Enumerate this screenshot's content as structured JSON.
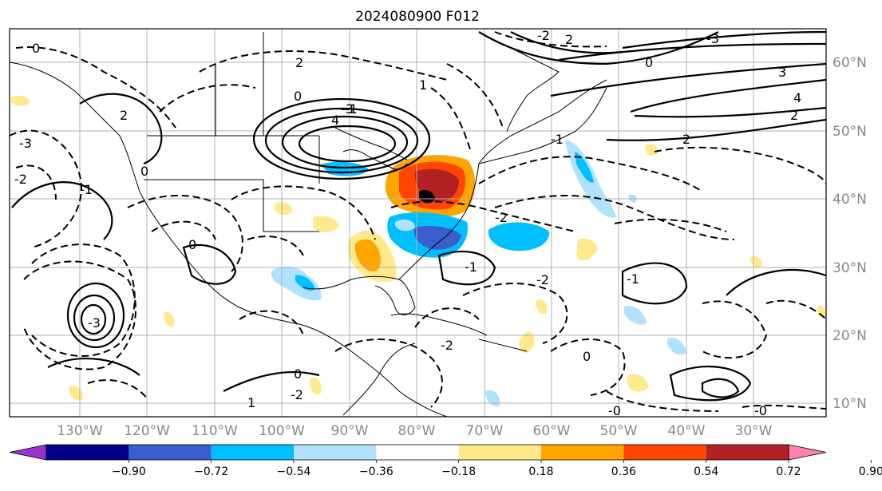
{
  "title": "2024080900 F012",
  "lat_labels": [
    "60°N",
    "50°N",
    "40°N",
    "30°N",
    "20°N",
    "10°N"
  ],
  "lon_labels": [
    "130°W",
    "120°W",
    "110°W",
    "100°W",
    "90°W",
    "80°W",
    "70°W",
    "60°W",
    "50°W",
    "40°W",
    "30°W"
  ],
  "colorbar": {
    "ticks": [
      "−0.90",
      "−0.72",
      "−0.54",
      "−0.36",
      "−0.18",
      "0.18",
      "0.36",
      "0.54",
      "0.72",
      "0.90"
    ],
    "colors": [
      "#9932cc",
      "#00008b",
      "#3a5fcd",
      "#00bfff",
      "#b0e2ff",
      "#ffffff",
      "#ffe98a",
      "#ffa500",
      "#ff4500",
      "#b22222",
      "#ff82ab"
    ]
  },
  "contour_labels": [
    "0",
    "-2",
    "-3",
    "2",
    "1",
    "4",
    "-1",
    "-3",
    "0",
    "2",
    "-2",
    "3",
    "-3",
    "2",
    "0",
    "-1",
    "4",
    "2",
    "0",
    "-2",
    "-2",
    "-1",
    "0",
    "-2",
    "-0",
    "-0",
    "-3",
    "1",
    "-1",
    "0",
    "-1",
    "2",
    "-2",
    "0"
  ],
  "shading_colors": {
    "light_blue": "#b0e2ff",
    "blue": "#00bfff",
    "mid_blue": "#3a5fcd",
    "yellow": "#ffe98a",
    "orange": "#ffa500",
    "red_orange": "#ff4500",
    "dark_red": "#b22222"
  }
}
